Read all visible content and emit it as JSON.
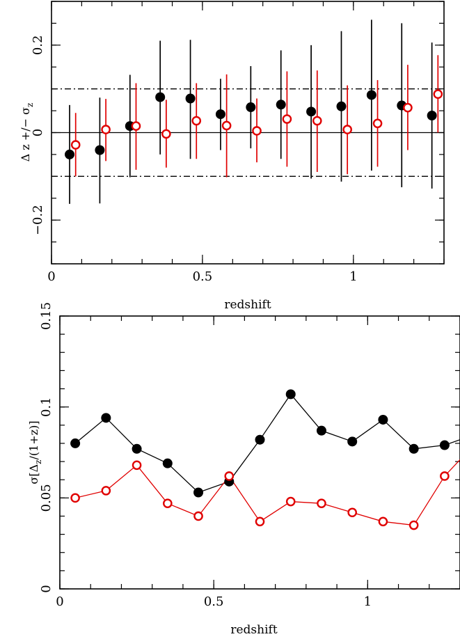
{
  "colors": {
    "series_black": "#000000",
    "series_red": "#e00000"
  },
  "chart_data": [
    {
      "type": "scatter",
      "xlabel": "redshift",
      "ylabel": {
        "main": "Δ z +/− σ",
        "sub": "z"
      },
      "xlim": [
        0,
        1.3
      ],
      "ylim": [
        -0.3,
        0.3
      ],
      "xticks": [
        0,
        0.5,
        1
      ],
      "xtick_labels": [
        "0",
        "0.5",
        "1"
      ],
      "yticks": [
        -0.2,
        0,
        0.2
      ],
      "ytick_labels": [
        "−0.2",
        "0",
        "0.2"
      ],
      "reference_lines": [
        {
          "y": 0,
          "style": "solid"
        },
        {
          "y": 0.1,
          "style": "dash-dot"
        },
        {
          "y": -0.1,
          "style": "dash-dot"
        }
      ],
      "series": [
        {
          "marker": "filled-circle",
          "color": "#000000",
          "points": [
            {
              "x": 0.06,
              "y": -0.05,
              "lo": -0.163,
              "hi": 0.063
            },
            {
              "x": 0.16,
              "y": -0.04,
              "lo": -0.162,
              "hi": 0.08
            },
            {
              "x": 0.26,
              "y": 0.015,
              "lo": -0.102,
              "hi": 0.132
            },
            {
              "x": 0.36,
              "y": 0.081,
              "lo": -0.05,
              "hi": 0.21
            },
            {
              "x": 0.46,
              "y": 0.078,
              "lo": -0.06,
              "hi": 0.212
            },
            {
              "x": 0.56,
              "y": 0.042,
              "lo": -0.04,
              "hi": 0.123
            },
            {
              "x": 0.66,
              "y": 0.058,
              "lo": -0.036,
              "hi": 0.152
            },
            {
              "x": 0.76,
              "y": 0.064,
              "lo": -0.06,
              "hi": 0.188
            },
            {
              "x": 0.86,
              "y": 0.048,
              "lo": -0.105,
              "hi": 0.2
            },
            {
              "x": 0.96,
              "y": 0.06,
              "lo": -0.112,
              "hi": 0.232
            },
            {
              "x": 1.06,
              "y": 0.086,
              "lo": -0.087,
              "hi": 0.258
            },
            {
              "x": 1.16,
              "y": 0.062,
              "lo": -0.125,
              "hi": 0.25
            },
            {
              "x": 1.26,
              "y": 0.039,
              "lo": -0.128,
              "hi": 0.206
            }
          ]
        },
        {
          "marker": "open-circle",
          "color": "#e00000",
          "points": [
            {
              "x": 0.08,
              "y": -0.028,
              "lo": -0.1,
              "hi": 0.045
            },
            {
              "x": 0.18,
              "y": 0.007,
              "lo": -0.065,
              "hi": 0.077
            },
            {
              "x": 0.28,
              "y": 0.015,
              "lo": -0.085,
              "hi": 0.113
            },
            {
              "x": 0.38,
              "y": -0.003,
              "lo": -0.08,
              "hi": 0.075
            },
            {
              "x": 0.48,
              "y": 0.027,
              "lo": -0.06,
              "hi": 0.113
            },
            {
              "x": 0.58,
              "y": 0.016,
              "lo": -0.102,
              "hi": 0.133
            },
            {
              "x": 0.68,
              "y": 0.004,
              "lo": -0.068,
              "hi": 0.078
            },
            {
              "x": 0.78,
              "y": 0.031,
              "lo": -0.078,
              "hi": 0.14
            },
            {
              "x": 0.88,
              "y": 0.027,
              "lo": -0.09,
              "hi": 0.142
            },
            {
              "x": 0.98,
              "y": 0.007,
              "lo": -0.095,
              "hi": 0.108
            },
            {
              "x": 1.08,
              "y": 0.021,
              "lo": -0.078,
              "hi": 0.12
            },
            {
              "x": 1.18,
              "y": 0.057,
              "lo": -0.04,
              "hi": 0.155
            },
            {
              "x": 1.28,
              "y": 0.088,
              "lo": 0.0,
              "hi": 0.177
            }
          ]
        }
      ]
    },
    {
      "type": "line",
      "xlabel": "redshift",
      "ylabel": {
        "pre": "σ[Δ",
        "sub": "z",
        "post": "/(1+z)]"
      },
      "xlim": [
        0,
        1.3
      ],
      "ylim": [
        0,
        0.15
      ],
      "xticks": [
        0,
        0.5,
        1
      ],
      "xtick_labels": [
        "0",
        "0.5",
        "1"
      ],
      "yticks": [
        0,
        0.05,
        0.1,
        0.15
      ],
      "ytick_labels": [
        "0",
        "0.05",
        "0.1",
        "0.15"
      ],
      "series": [
        {
          "marker": "filled-circle",
          "color": "#000000",
          "x": [
            0.05,
            0.15,
            0.25,
            0.35,
            0.45,
            0.55,
            0.65,
            0.75,
            0.85,
            0.95,
            1.05,
            1.15,
            1.25,
            1.3
          ],
          "y": [
            0.08,
            0.094,
            0.077,
            0.069,
            0.053,
            0.059,
            0.082,
            0.107,
            0.087,
            0.081,
            0.093,
            0.077,
            0.079,
            0.082
          ],
          "marker_count": 13
        },
        {
          "marker": "open-circle",
          "color": "#e00000",
          "x": [
            0.05,
            0.15,
            0.25,
            0.35,
            0.45,
            0.55,
            0.65,
            0.75,
            0.85,
            0.95,
            1.05,
            1.15,
            1.25,
            1.3
          ],
          "y": [
            0.05,
            0.054,
            0.068,
            0.047,
            0.04,
            0.062,
            0.037,
            0.048,
            0.047,
            0.042,
            0.037,
            0.035,
            0.062,
            0.071
          ],
          "marker_count": 13
        }
      ]
    }
  ]
}
